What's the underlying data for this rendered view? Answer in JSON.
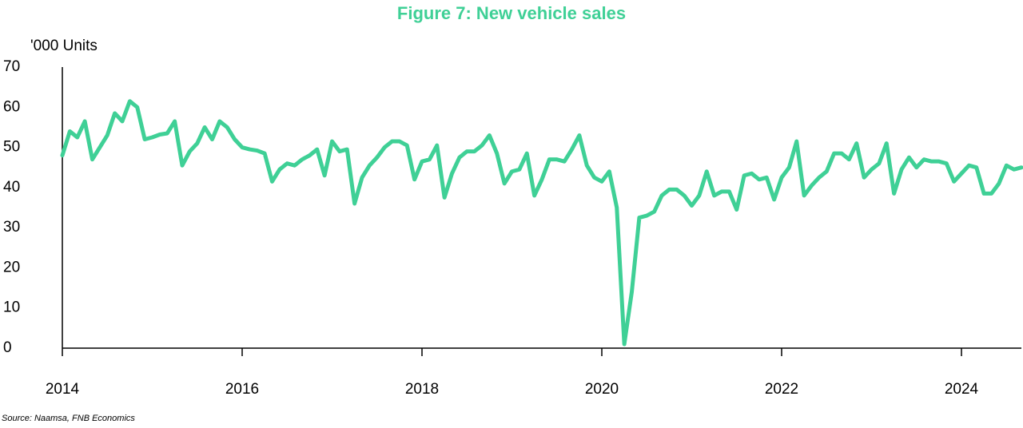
{
  "chart_data": {
    "type": "line",
    "title": "Figure 7: New vehicle sales",
    "y_label": "'000 Units",
    "source": "Source: Naamsa, FNB Economics",
    "x": [
      "2014-01",
      "2014-02",
      "2014-03",
      "2014-04",
      "2014-05",
      "2014-06",
      "2014-07",
      "2014-08",
      "2014-09",
      "2014-10",
      "2014-11",
      "2014-12",
      "2015-01",
      "2015-02",
      "2015-03",
      "2015-04",
      "2015-05",
      "2015-06",
      "2015-07",
      "2015-08",
      "2015-09",
      "2015-10",
      "2015-11",
      "2015-12",
      "2016-01",
      "2016-02",
      "2016-03",
      "2016-04",
      "2016-05",
      "2016-06",
      "2016-07",
      "2016-08",
      "2016-09",
      "2016-10",
      "2016-11",
      "2016-12",
      "2017-01",
      "2017-02",
      "2017-03",
      "2017-04",
      "2017-05",
      "2017-06",
      "2017-07",
      "2017-08",
      "2017-09",
      "2017-10",
      "2017-11",
      "2017-12",
      "2018-01",
      "2018-02",
      "2018-03",
      "2018-04",
      "2018-05",
      "2018-06",
      "2018-07",
      "2018-08",
      "2018-09",
      "2018-10",
      "2018-11",
      "2018-12",
      "2019-01",
      "2019-02",
      "2019-03",
      "2019-04",
      "2019-05",
      "2019-06",
      "2019-07",
      "2019-08",
      "2019-09",
      "2019-10",
      "2019-11",
      "2019-12",
      "2020-01",
      "2020-02",
      "2020-03",
      "2020-04",
      "2020-05",
      "2020-06",
      "2020-07",
      "2020-08",
      "2020-09",
      "2020-10",
      "2020-11",
      "2020-12",
      "2021-01",
      "2021-02",
      "2021-03",
      "2021-04",
      "2021-05",
      "2021-06",
      "2021-07",
      "2021-08",
      "2021-09",
      "2021-10",
      "2021-11",
      "2021-12",
      "2022-01",
      "2022-02",
      "2022-03",
      "2022-04",
      "2022-05",
      "2022-06",
      "2022-07",
      "2022-08",
      "2022-09",
      "2022-10",
      "2022-11",
      "2022-12",
      "2023-01",
      "2023-02",
      "2023-03",
      "2023-04",
      "2023-05",
      "2023-06",
      "2023-07",
      "2023-08",
      "2023-09",
      "2023-10",
      "2023-11",
      "2023-12",
      "2024-01",
      "2024-02",
      "2024-03",
      "2024-04",
      "2024-05",
      "2024-06",
      "2024-07",
      "2024-08",
      "2024-09"
    ],
    "series": [
      {
        "color": "#3fd096",
        "values": [
          48,
          54,
          52.5,
          56.5,
          47,
          50,
          53,
          58.5,
          56.5,
          61.5,
          60,
          52,
          52.5,
          53.2,
          53.5,
          56.5,
          45.5,
          49,
          51,
          55,
          52,
          56.5,
          55,
          52,
          50,
          49.5,
          49.2,
          48.5,
          41.5,
          44.5,
          46,
          45.5,
          47,
          48,
          49.5,
          43,
          51.5,
          49,
          49.5,
          36,
          42.5,
          45.5,
          47.5,
          50,
          51.5,
          51.5,
          50.5,
          42,
          46.5,
          47,
          50.5,
          37.5,
          43.5,
          47.5,
          49,
          49,
          50.5,
          53,
          48.5,
          41,
          44,
          44.5,
          48.5,
          38,
          42,
          47,
          47,
          46.5,
          49.5,
          53,
          45.5,
          42.5,
          41.5,
          44,
          35,
          1,
          14,
          32.5,
          33,
          34,
          38,
          39.5,
          39.5,
          38,
          35.5,
          38,
          44,
          38,
          39,
          39,
          34.5,
          43,
          43.5,
          42,
          42.5,
          37,
          42.5,
          45,
          51.5,
          38,
          40.5,
          42.5,
          44,
          48.5,
          48.5,
          47,
          51,
          42.5,
          44.5,
          46,
          51,
          38.5,
          44.5,
          47.5,
          45,
          47,
          46.5,
          46.5,
          46,
          41.5,
          43.5,
          45.5,
          45,
          38.5,
          38.5,
          41,
          45.5,
          44.5,
          45
        ]
      }
    ],
    "xlim": [
      "2014-01",
      "2024-09"
    ],
    "xticks": [
      {
        "value": "2014-01",
        "label": "2014"
      },
      {
        "value": "2016-01",
        "label": "2016"
      },
      {
        "value": "2018-01",
        "label": "2018"
      },
      {
        "value": "2020-01",
        "label": "2020"
      },
      {
        "value": "2022-01",
        "label": "2022"
      },
      {
        "value": "2024-01",
        "label": "2024"
      }
    ],
    "ylim": [
      0,
      70
    ],
    "yticks": [
      0,
      10,
      20,
      30,
      40,
      50,
      60,
      70
    ]
  }
}
